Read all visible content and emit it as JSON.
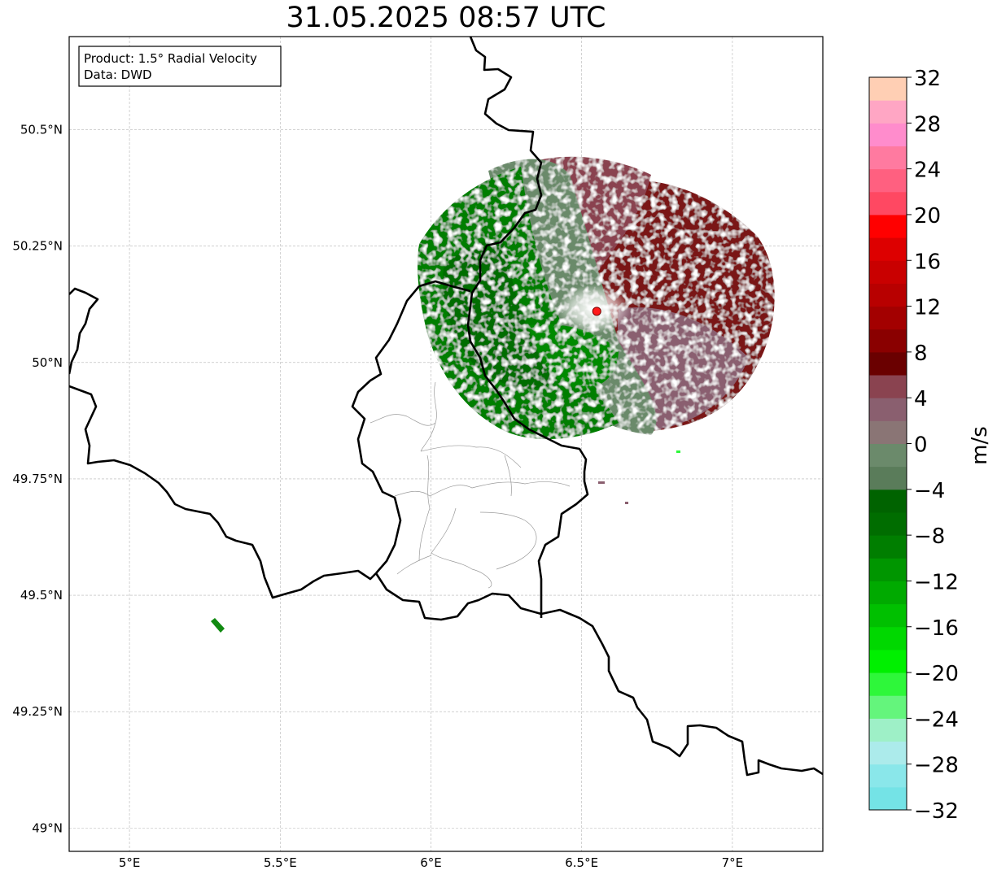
{
  "title": "31.05.2025 08:57 UTC",
  "info_box": {
    "product_line": "Product: 1.5° Radial Velocity",
    "data_line": "Data: DWD"
  },
  "map": {
    "lon_range": [
      4.8,
      7.3
    ],
    "lat_range": [
      48.95,
      50.7
    ],
    "lon_ticks": [
      {
        "value": 5.0,
        "label": "5°E"
      },
      {
        "value": 5.5,
        "label": "5.5°E"
      },
      {
        "value": 6.0,
        "label": "6°E"
      },
      {
        "value": 6.5,
        "label": "6.5°E"
      },
      {
        "value": 7.0,
        "label": "7°E"
      }
    ],
    "lat_ticks": [
      {
        "value": 49.0,
        "label": "49°N"
      },
      {
        "value": 49.25,
        "label": "49.25°N"
      },
      {
        "value": 49.5,
        "label": "49.5°N"
      },
      {
        "value": 49.75,
        "label": "49.75°N"
      },
      {
        "value": 50.0,
        "label": "50°N"
      },
      {
        "value": 50.25,
        "label": "50.25°N"
      },
      {
        "value": 50.5,
        "label": "50.5°N"
      }
    ],
    "gridlines": true,
    "radar_site": {
      "lon": 6.55,
      "lat": 50.11,
      "color": "#ff1a1a"
    },
    "scan_extent_lon": [
      6.0,
      7.2
    ],
    "scan_extent_lat": [
      49.75,
      50.5
    ],
    "small_echo_lon": 5.3,
    "small_echo_lat": 49.45
  },
  "colorbar": {
    "unit": "m/s",
    "min": -32,
    "max": 32,
    "labels": [
      "32",
      "28",
      "24",
      "20",
      "16",
      "12",
      "8",
      "4",
      "0",
      "−4",
      "−8",
      "−12",
      "−16",
      "−20",
      "−24",
      "−28",
      "−32"
    ],
    "colors_bottom_to_top": [
      "#74e3e6",
      "#8ae7ea",
      "#acebeb",
      "#9ef0c7",
      "#64f57c",
      "#2ef73a",
      "#00f000",
      "#00d800",
      "#00c000",
      "#00aa00",
      "#009600",
      "#007e00",
      "#006d00",
      "#006300",
      "#5a7c5a",
      "#6b8a6b",
      "#8a7575",
      "#8a5f6f",
      "#8a4350",
      "#6a0000",
      "#8a0000",
      "#a30000",
      "#b80000",
      "#c90000",
      "#dd0000",
      "#ff0000",
      "#ff4862",
      "#ff6080",
      "#ff7aa0",
      "#ff8ccc",
      "#ffa6c4",
      "#ffcfb4"
    ]
  }
}
